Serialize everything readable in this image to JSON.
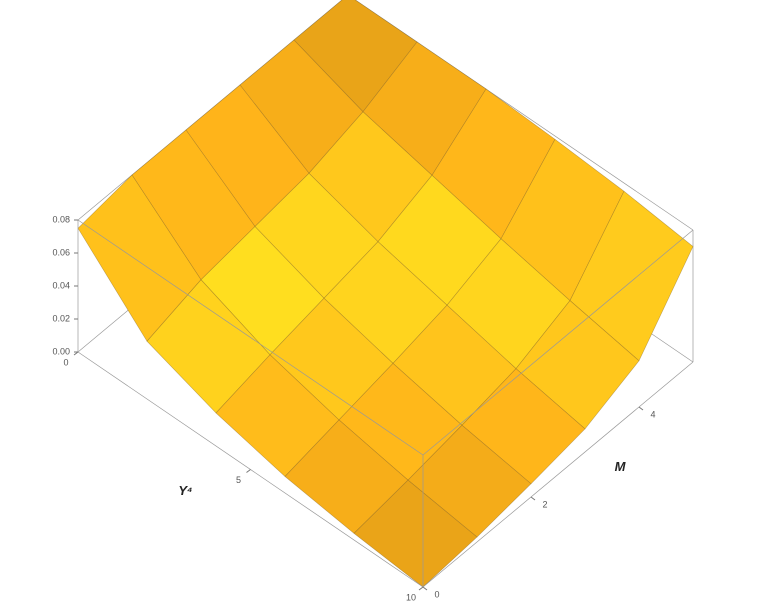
{
  "chart_data": {
    "type": "surface",
    "x_label": "Y⁴",
    "y_label": "M",
    "x": [
      0,
      2,
      4,
      6,
      8,
      10
    ],
    "y": [
      0,
      1,
      2,
      3,
      4,
      5
    ],
    "z": [
      [
        0.075,
        0.08,
        0.08,
        0.08,
        0.08,
        0.08
      ],
      [
        0.035,
        0.045,
        0.05,
        0.055,
        0.065,
        0.08
      ],
      [
        0.02,
        0.028,
        0.035,
        0.042,
        0.055,
        0.08
      ],
      [
        0.01,
        0.017,
        0.024,
        0.032,
        0.045,
        0.078
      ],
      [
        0.004,
        0.009,
        0.015,
        0.022,
        0.036,
        0.075
      ],
      [
        0,
        0.003,
        0.008,
        0.014,
        0.028,
        0.07
      ]
    ],
    "xlim": [
      0,
      10
    ],
    "ylim": [
      0,
      5
    ],
    "zlim": [
      0,
      0.08
    ],
    "xticks": [
      0,
      5,
      10
    ],
    "yticks": [
      0,
      2,
      4
    ],
    "zticks": [
      {
        "value": 0,
        "label": "0.00"
      },
      0.02,
      0.04,
      0.06,
      0.08
    ],
    "color": "#f7a81b"
  }
}
